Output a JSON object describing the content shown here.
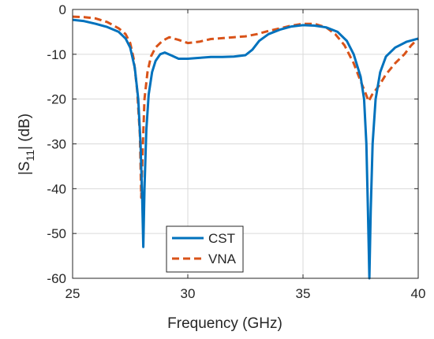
{
  "chart_data": {
    "type": "line",
    "xlabel": "Frequency (GHz)",
    "ylabel_main": "|S",
    "ylabel_sub": "11",
    "ylabel_tail": "| (dB)",
    "xlim": [
      25,
      40
    ],
    "ylim": [
      -60,
      0
    ],
    "xticks": [
      25,
      30,
      35,
      40
    ],
    "yticks": [
      0,
      -10,
      -20,
      -30,
      -40,
      -50,
      -60
    ],
    "grid": true,
    "legend_position": "lower-center",
    "series": [
      {
        "name": "CST",
        "color": "#0072BD",
        "style": "solid",
        "points": [
          [
            25.0,
            -2.3
          ],
          [
            25.5,
            -2.6
          ],
          [
            26.0,
            -3.2
          ],
          [
            26.5,
            -3.9
          ],
          [
            27.0,
            -5.0
          ],
          [
            27.3,
            -6.5
          ],
          [
            27.5,
            -8.5
          ],
          [
            27.7,
            -13.0
          ],
          [
            27.85,
            -20.0
          ],
          [
            27.95,
            -30.0
          ],
          [
            28.02,
            -42.0
          ],
          [
            28.07,
            -53.0
          ],
          [
            28.12,
            -40.0
          ],
          [
            28.2,
            -27.0
          ],
          [
            28.3,
            -19.0
          ],
          [
            28.45,
            -14.0
          ],
          [
            28.6,
            -11.5
          ],
          [
            28.8,
            -10.0
          ],
          [
            29.0,
            -9.6
          ],
          [
            29.3,
            -10.3
          ],
          [
            29.6,
            -11.0
          ],
          [
            30.0,
            -11.0
          ],
          [
            30.5,
            -10.8
          ],
          [
            31.0,
            -10.6
          ],
          [
            31.5,
            -10.6
          ],
          [
            32.0,
            -10.5
          ],
          [
            32.5,
            -10.2
          ],
          [
            32.8,
            -9.0
          ],
          [
            33.1,
            -7.0
          ],
          [
            33.5,
            -5.5
          ],
          [
            34.0,
            -4.5
          ],
          [
            34.5,
            -3.8
          ],
          [
            35.0,
            -3.5
          ],
          [
            35.5,
            -3.6
          ],
          [
            36.0,
            -4.0
          ],
          [
            36.5,
            -5.0
          ],
          [
            36.9,
            -7.0
          ],
          [
            37.2,
            -10.0
          ],
          [
            37.5,
            -15.0
          ],
          [
            37.65,
            -20.0
          ],
          [
            37.75,
            -30.0
          ],
          [
            37.82,
            -45.0
          ],
          [
            37.88,
            -60.0
          ],
          [
            37.94,
            -45.0
          ],
          [
            38.02,
            -30.0
          ],
          [
            38.15,
            -20.0
          ],
          [
            38.35,
            -14.0
          ],
          [
            38.6,
            -10.5
          ],
          [
            39.0,
            -8.5
          ],
          [
            39.5,
            -7.2
          ],
          [
            40.0,
            -6.5
          ]
        ]
      },
      {
        "name": "VNA",
        "color": "#D95319",
        "style": "dashed",
        "points": [
          [
            25.0,
            -1.6
          ],
          [
            25.5,
            -1.7
          ],
          [
            26.0,
            -2.0
          ],
          [
            26.5,
            -2.8
          ],
          [
            27.0,
            -4.2
          ],
          [
            27.3,
            -5.5
          ],
          [
            27.5,
            -7.5
          ],
          [
            27.65,
            -11.0
          ],
          [
            27.8,
            -18.0
          ],
          [
            27.92,
            -28.0
          ],
          [
            27.98,
            -42.0
          ],
          [
            28.05,
            -30.0
          ],
          [
            28.12,
            -20.0
          ],
          [
            28.25,
            -14.0
          ],
          [
            28.4,
            -10.5
          ],
          [
            28.6,
            -8.5
          ],
          [
            28.9,
            -7.0
          ],
          [
            29.2,
            -6.2
          ],
          [
            29.6,
            -6.8
          ],
          [
            30.0,
            -7.5
          ],
          [
            30.5,
            -7.2
          ],
          [
            31.0,
            -6.6
          ],
          [
            31.5,
            -6.4
          ],
          [
            32.0,
            -6.2
          ],
          [
            32.5,
            -6.0
          ],
          [
            33.0,
            -5.5
          ],
          [
            33.5,
            -4.8
          ],
          [
            34.0,
            -4.2
          ],
          [
            34.5,
            -3.6
          ],
          [
            35.0,
            -3.2
          ],
          [
            35.5,
            -3.2
          ],
          [
            36.0,
            -4.0
          ],
          [
            36.4,
            -5.5
          ],
          [
            36.8,
            -8.0
          ],
          [
            37.2,
            -12.0
          ],
          [
            37.5,
            -16.0
          ],
          [
            37.7,
            -18.5
          ],
          [
            37.85,
            -20.5
          ],
          [
            38.0,
            -19.0
          ],
          [
            38.3,
            -17.0
          ],
          [
            38.6,
            -14.5
          ],
          [
            39.0,
            -12.0
          ],
          [
            39.4,
            -10.0
          ],
          [
            39.7,
            -8.0
          ],
          [
            40.0,
            -6.5
          ]
        ]
      }
    ]
  }
}
